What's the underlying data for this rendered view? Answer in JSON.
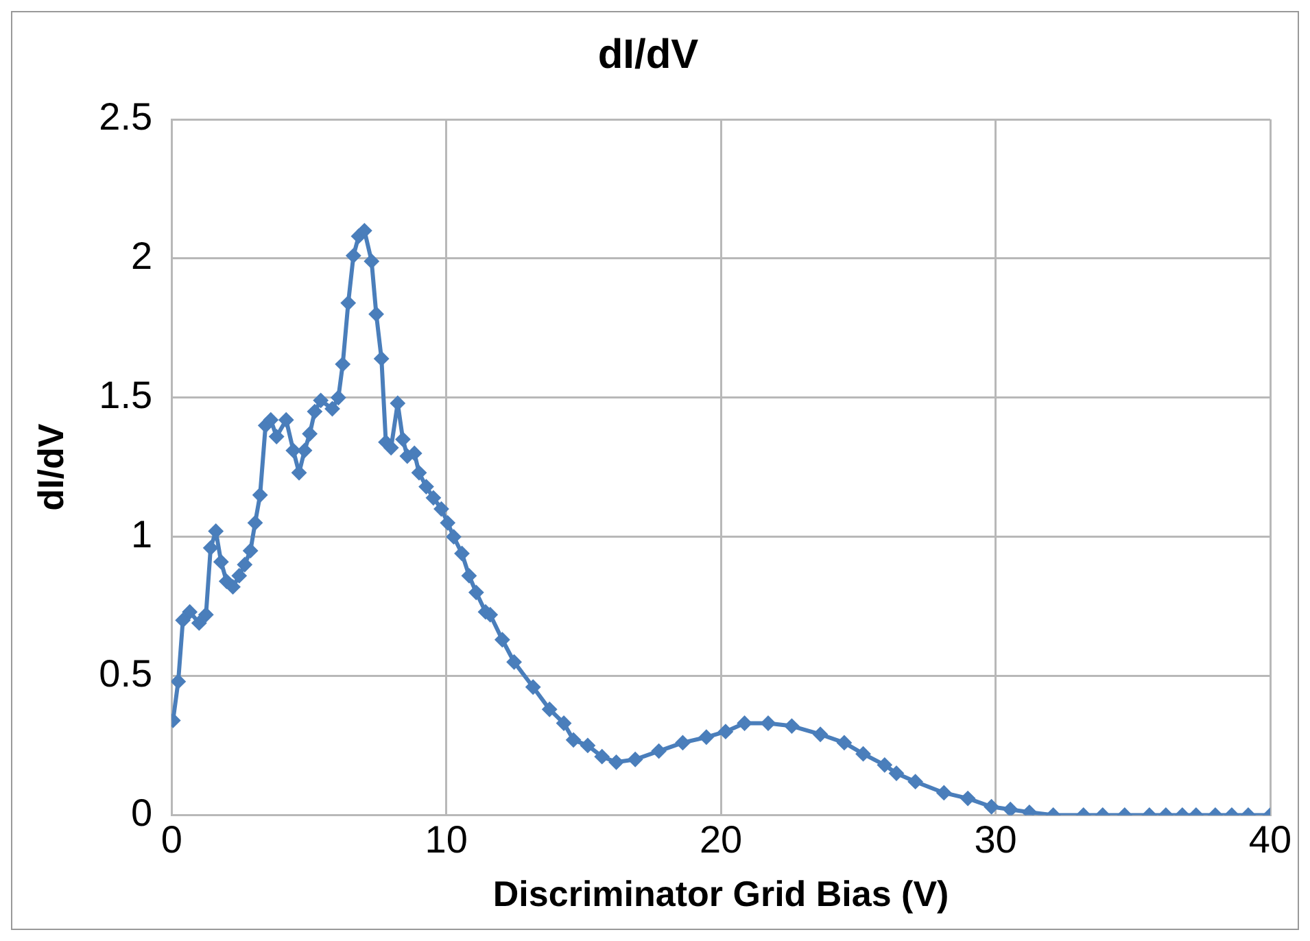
{
  "chart_data": {
    "type": "line",
    "title": "dI/dV",
    "xlabel": "Discriminator Grid Bias (V)",
    "ylabel": "dI/dV",
    "x": [
      0.05,
      0.24,
      0.41,
      0.66,
      1.0,
      1.25,
      1.42,
      1.61,
      1.8,
      2.0,
      2.23,
      2.46,
      2.66,
      2.87,
      3.04,
      3.22,
      3.42,
      3.61,
      3.82,
      4.17,
      4.43,
      4.64,
      4.84,
      5.03,
      5.21,
      5.43,
      5.85,
      6.07,
      6.23,
      6.43,
      6.62,
      6.81,
      7.02,
      7.28,
      7.45,
      7.64,
      7.8,
      7.99,
      8.23,
      8.42,
      8.58,
      8.84,
      9.01,
      9.27,
      9.53,
      9.82,
      10.05,
      10.27,
      10.57,
      10.83,
      11.09,
      11.43,
      11.6,
      12.04,
      12.47,
      13.16,
      13.76,
      14.28,
      14.63,
      15.15,
      15.67,
      16.19,
      16.88,
      17.74,
      18.61,
      19.47,
      20.17,
      20.86,
      21.72,
      22.58,
      23.62,
      24.49,
      25.18,
      25.96,
      26.39,
      27.08,
      28.12,
      28.99,
      29.85,
      30.54,
      31.23,
      32.1,
      33.2,
      33.9,
      34.7,
      35.6,
      36.2,
      36.8,
      37.3,
      38.0,
      38.6,
      39.2,
      40.0
    ],
    "series": [
      {
        "color": "#4a7ebb",
        "values": [
          0.34,
          0.48,
          0.7,
          0.73,
          0.69,
          0.72,
          0.96,
          1.02,
          0.91,
          0.84,
          0.82,
          0.86,
          0.9,
          0.95,
          1.05,
          1.15,
          1.4,
          1.42,
          1.36,
          1.42,
          1.31,
          1.23,
          1.31,
          1.37,
          1.45,
          1.49,
          1.46,
          1.5,
          1.62,
          1.84,
          2.01,
          2.08,
          2.1,
          1.99,
          1.8,
          1.64,
          1.34,
          1.32,
          1.48,
          1.35,
          1.29,
          1.3,
          1.23,
          1.18,
          1.14,
          1.1,
          1.05,
          1.0,
          0.94,
          0.86,
          0.8,
          0.73,
          0.72,
          0.63,
          0.55,
          0.46,
          0.38,
          0.33,
          0.27,
          0.25,
          0.21,
          0.19,
          0.2,
          0.23,
          0.26,
          0.28,
          0.3,
          0.33,
          0.33,
          0.32,
          0.29,
          0.26,
          0.22,
          0.18,
          0.15,
          0.12,
          0.08,
          0.06,
          0.03,
          0.02,
          0.01,
          0.0,
          0,
          0,
          0,
          0,
          0,
          0,
          0,
          0,
          0,
          0,
          0
        ]
      }
    ],
    "xlim": [
      0,
      40
    ],
    "xticks": [
      0,
      10,
      20,
      30,
      40
    ],
    "ylim": [
      0,
      2.5
    ],
    "yticks": [
      0,
      0.5,
      1,
      1.5,
      2,
      2.5
    ],
    "grid": true,
    "legend": false,
    "marker": "diamond",
    "line_style": "solid"
  }
}
